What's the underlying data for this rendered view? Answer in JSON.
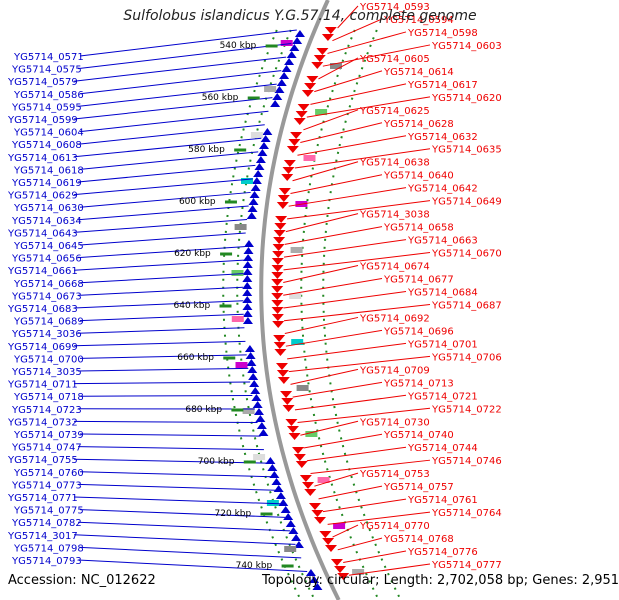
{
  "title": "Sulfolobus islandicus Y.G.57.14, complete genome",
  "accession": "Accession: NC_012622",
  "topology": "Topology: circular; Length: 2,702,058 bp; Genes: 2,951",
  "colors": {
    "minus_strand": "#0000cc",
    "plus_strand": "#ee0000",
    "backbone": "#999999",
    "tick": "#228822"
  },
  "ticks": [
    "540 kbp",
    "560 kbp",
    "580 kbp",
    "600 kbp",
    "620 kbp",
    "640 kbp",
    "660 kbp",
    "680 kbp",
    "700 kbp",
    "720 kbp",
    "740 kbp"
  ],
  "minus_genes": [
    "YG5714_0571",
    "YG5714_0575",
    "YG5714_0579",
    "YG5714_0586",
    "YG5714_0595",
    "YG5714_0599",
    "YG5714_0604",
    "YG5714_0608",
    "YG5714_0613",
    "YG5714_0618",
    "YG5714_0619",
    "YG5714_0629",
    "YG5714_0630",
    "YG5714_0634",
    "YG5714_0643",
    "YG5714_0645",
    "YG5714_0656",
    "YG5714_0661",
    "YG5714_0668",
    "YG5714_0673",
    "YG5714_0683",
    "YG5714_0689",
    "YG5714_3036",
    "YG5714_0699",
    "YG5714_0700",
    "YG5714_3035",
    "YG5714_0711",
    "YG5714_0718",
    "YG5714_0723",
    "YG5714_0732",
    "YG5714_0739",
    "YG5714_0747",
    "YG5714_0755",
    "YG5714_0760",
    "YG5714_0773",
    "YG5714_0771",
    "YG5714_0775",
    "YG5714_0782",
    "YG5714_3017",
    "YG5714_0798",
    "YG5714_0793"
  ],
  "plus_genes": [
    "YG5714_0593",
    "YG5714_0594",
    "YG5714_0598",
    "YG5714_0603",
    "YG5714_0605",
    "YG5714_0614",
    "YG5714_0617",
    "YG5714_0620",
    "YG5714_0625",
    "YG5714_0628",
    "YG5714_0632",
    "YG5714_0635",
    "YG5714_0638",
    "YG5714_0640",
    "YG5714_0642",
    "YG5714_0649",
    "YG5714_3038",
    "YG5714_0658",
    "YG5714_0663",
    "YG5714_0670",
    "YG5714_0674",
    "YG5714_0677",
    "YG5714_0684",
    "YG5714_0687",
    "YG5714_0692",
    "YG5714_0696",
    "YG5714_0701",
    "YG5714_0706",
    "YG5714_0709",
    "YG5714_0713",
    "YG5714_0721",
    "YG5714_0722",
    "YG5714_0730",
    "YG5714_0740",
    "YG5714_0744",
    "YG5714_0746",
    "YG5714_0753",
    "YG5714_0757",
    "YG5714_0761",
    "YG5714_0764",
    "YG5714_0770",
    "YG5714_0768",
    "YG5714_0776",
    "YG5714_0777"
  ]
}
